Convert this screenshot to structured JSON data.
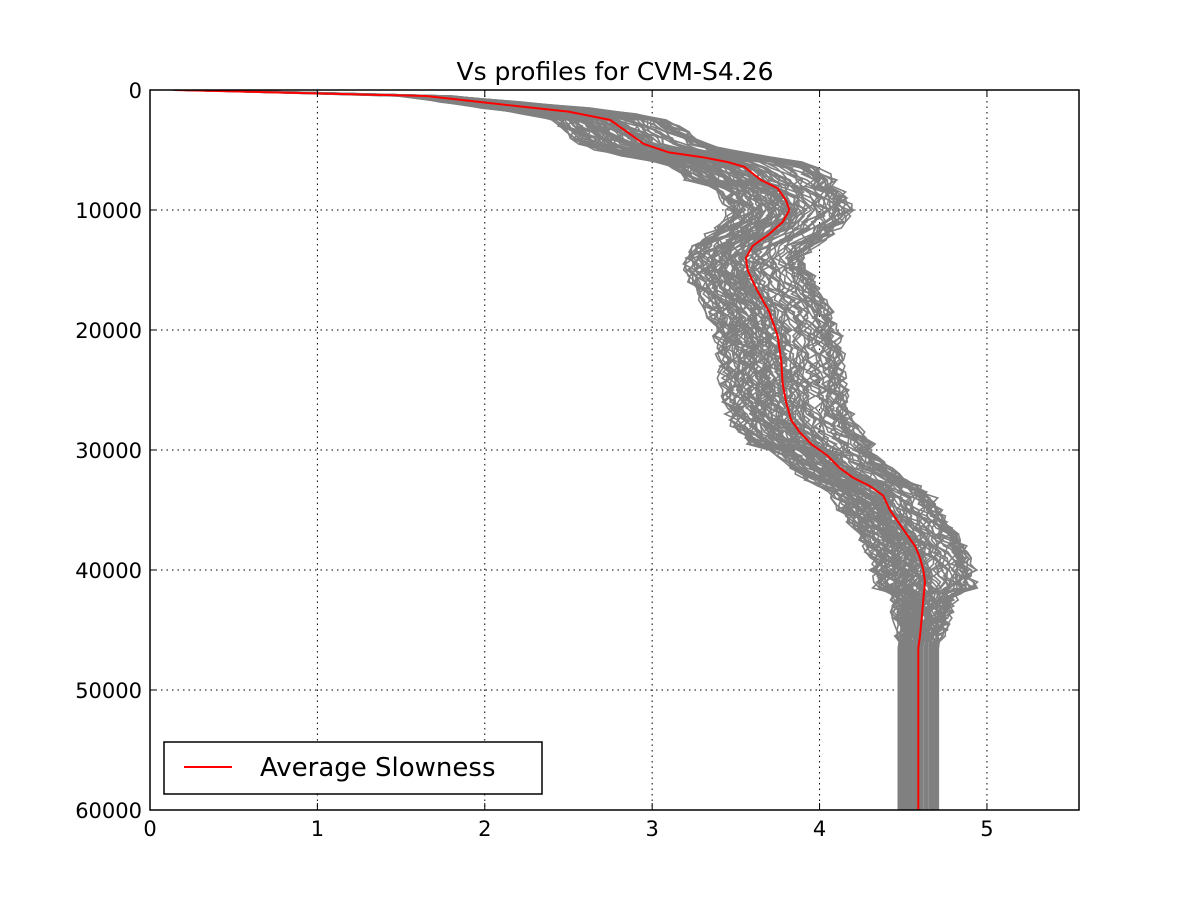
{
  "chart_data": {
    "type": "line",
    "title": "Vs profiles for CVM-S4.26",
    "xlabel": "",
    "ylabel": "",
    "xlim": [
      0,
      5.55
    ],
    "ylim": [
      60000,
      0
    ],
    "y_inverted": true,
    "grid": true,
    "x_ticks": [
      "0",
      "1",
      "2",
      "3",
      "4",
      "5"
    ],
    "y_ticks": [
      "0",
      "10000",
      "20000",
      "30000",
      "40000",
      "50000",
      "60000"
    ],
    "legend": {
      "placement": "lower-left",
      "entries": [
        {
          "label": "Average Slowness",
          "color": "#ff0000"
        }
      ]
    },
    "profile_color": "#808080",
    "series": [
      {
        "name": "Average Slowness",
        "color": "#ff0000",
        "points": [
          [
            0.15,
            0
          ],
          [
            1.65,
            500
          ],
          [
            2.1,
            1200
          ],
          [
            2.5,
            1800
          ],
          [
            2.75,
            2500
          ],
          [
            2.85,
            3500
          ],
          [
            2.95,
            4500
          ],
          [
            3.1,
            5200
          ],
          [
            3.3,
            5600
          ],
          [
            3.45,
            6000
          ],
          [
            3.55,
            6400
          ],
          [
            3.65,
            7500
          ],
          [
            3.75,
            8200
          ],
          [
            3.8,
            9200
          ],
          [
            3.82,
            10000
          ],
          [
            3.78,
            11000
          ],
          [
            3.7,
            12000
          ],
          [
            3.6,
            13000
          ],
          [
            3.56,
            14000
          ],
          [
            3.57,
            15000
          ],
          [
            3.62,
            16500
          ],
          [
            3.7,
            18500
          ],
          [
            3.75,
            20500
          ],
          [
            3.77,
            22500
          ],
          [
            3.78,
            24500
          ],
          [
            3.8,
            26000
          ],
          [
            3.83,
            27500
          ],
          [
            3.88,
            28500
          ],
          [
            3.95,
            29500
          ],
          [
            4.05,
            30500
          ],
          [
            4.12,
            31500
          ],
          [
            4.2,
            32300
          ],
          [
            4.3,
            33000
          ],
          [
            4.38,
            33800
          ],
          [
            4.42,
            35000
          ],
          [
            4.47,
            36000
          ],
          [
            4.52,
            37000
          ],
          [
            4.57,
            38000
          ],
          [
            4.6,
            39000
          ],
          [
            4.62,
            40000
          ],
          [
            4.63,
            41000
          ],
          [
            4.62,
            42500
          ],
          [
            4.61,
            44000
          ],
          [
            4.6,
            45500
          ],
          [
            4.59,
            46500
          ],
          [
            4.59,
            50000
          ],
          [
            4.59,
            55000
          ],
          [
            4.59,
            60000
          ]
        ]
      }
    ]
  }
}
